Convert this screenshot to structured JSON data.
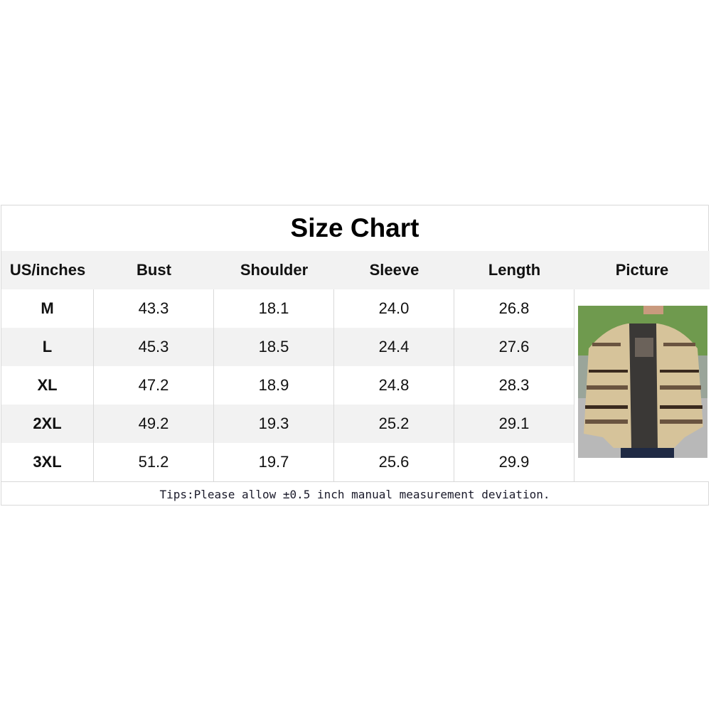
{
  "title": "Size Chart",
  "headers": [
    "US/inches",
    "Bust",
    "Shoulder",
    "Sleeve",
    "Length",
    "Picture"
  ],
  "rows": [
    [
      "M",
      "43.3",
      "18.1",
      "24.0",
      "26.8"
    ],
    [
      "L",
      "45.3",
      "18.5",
      "24.4",
      "27.6"
    ],
    [
      "XL",
      "47.2",
      "18.9",
      "24.8",
      "28.3"
    ],
    [
      "2XL",
      "49.2",
      "19.3",
      "25.2",
      "29.1"
    ],
    [
      "3XL",
      "51.2",
      "19.7",
      "25.6",
      "29.9"
    ]
  ],
  "tips": "Tips:Please allow ±0.5 inch manual measurement deviation."
}
